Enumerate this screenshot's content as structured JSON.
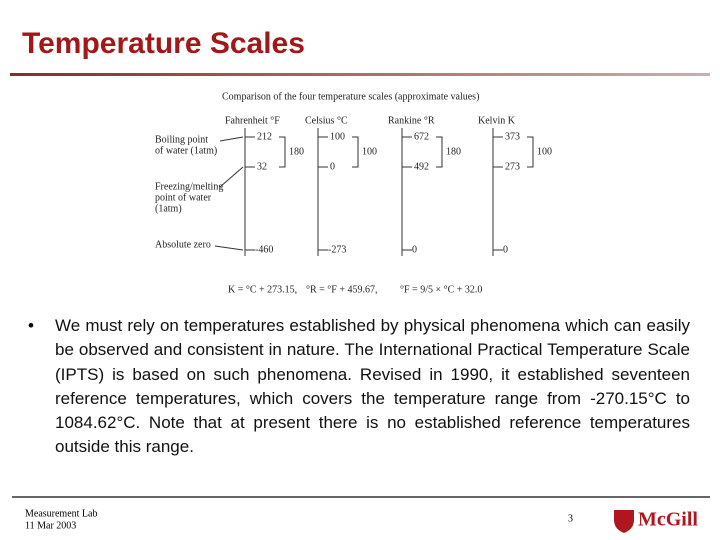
{
  "header": {
    "title": "Temperature Scales"
  },
  "figure": {
    "caption": "Comparison of the four temperature scales (approximate values)",
    "scales": [
      {
        "name": "Fahrenheit °F",
        "boiling": 212,
        "span": 180,
        "freezing": 32,
        "absolute_zero": -460
      },
      {
        "name": "Celsius °C",
        "boiling": 100,
        "span": 100,
        "freezing": 0,
        "absolute_zero": -273
      },
      {
        "name": "Rankine °R",
        "boiling": 672,
        "span": 180,
        "freezing": 492,
        "absolute_zero": 0
      },
      {
        "name": "Kelvin K",
        "boiling": 373,
        "span": 100,
        "freezing": 273,
        "absolute_zero": 0
      }
    ],
    "labels": {
      "boiling": [
        "Boiling point",
        "of water (1atm)"
      ],
      "freezing": [
        "Freezing/melting",
        "point of water",
        "(1atm)"
      ],
      "absolute_zero": [
        "Absolute zero"
      ]
    },
    "formulas": [
      "K = °C + 273.15,",
      "°R = °F + 459.67,",
      "°F = 9/5 × °C + 32.0"
    ]
  },
  "body": {
    "bullet": "We must rely on temperatures established by physical phenomena which can easily be observed and consistent in nature. The International Practical Temperature Scale (IPTS) is based on such phenomena. Revised in 1990, it established seventeen reference temperatures, which covers the temperature range from -270.15°C to 1084.62°C. Note that at present there is no established reference temperatures outside this range."
  },
  "footer": {
    "lab": "Measurement Lab",
    "date": "11 Mar 2003",
    "page": "3",
    "logo": "McGill"
  }
}
